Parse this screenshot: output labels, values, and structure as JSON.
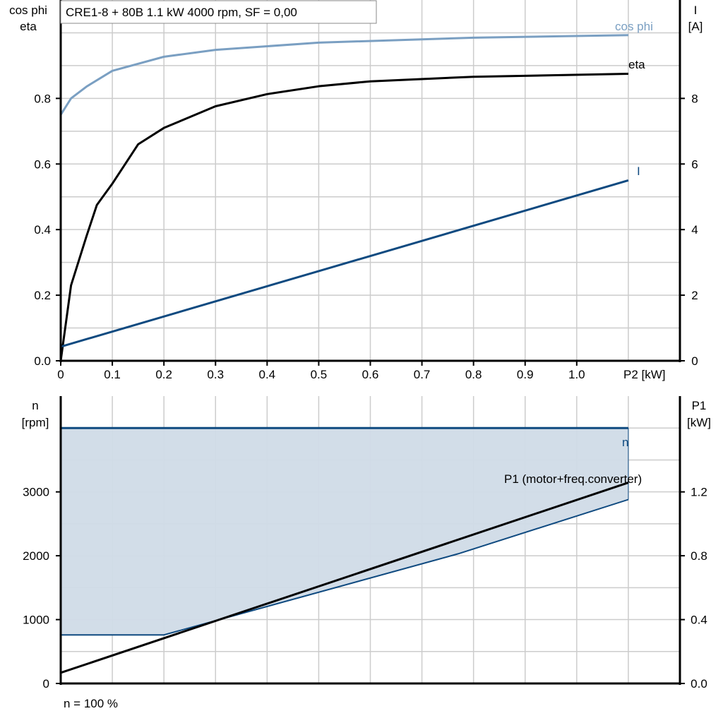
{
  "title": "CRE1-8 + 80B   1.1 kW   4000 rpm, SF = 0,00",
  "footer": "n = 100 %",
  "colors": {
    "cosphi": "#7a9fc2",
    "eta": "#000000",
    "I": "#0f4a80",
    "n": "#0f4a80",
    "n_fill": "#d0dbe7",
    "P1": "#000000",
    "grid": "#cccccc"
  },
  "chart_data": [
    {
      "type": "line",
      "xlabel": "P2 [kW]",
      "xlim": [
        0,
        1.2
      ],
      "xticks": [
        "0",
        "0.1",
        "0.2",
        "0.3",
        "0.4",
        "0.5",
        "0.6",
        "0.7",
        "0.8",
        "0.9",
        "1.0"
      ],
      "ylabel_left": [
        "cos phi",
        "eta"
      ],
      "ylim_left": [
        0,
        1.1
      ],
      "yticks_left": [
        "0.0",
        "0.2",
        "0.4",
        "0.6",
        "0.8"
      ],
      "ylabel_right": [
        "I",
        "[A]"
      ],
      "ylim_right": [
        0,
        11
      ],
      "yticks_right": [
        "0",
        "2",
        "4",
        "6",
        "8"
      ],
      "grid": true,
      "series": [
        {
          "name": "cos phi",
          "axis": "left",
          "x": [
            0,
            0.02,
            0.05,
            0.1,
            0.2,
            0.3,
            0.5,
            0.8,
            1.1
          ],
          "y": [
            0.75,
            0.8,
            0.836,
            0.884,
            0.927,
            0.948,
            0.97,
            0.985,
            0.993
          ]
        },
        {
          "name": "eta",
          "axis": "left",
          "x": [
            0,
            0.02,
            0.05,
            0.07,
            0.1,
            0.15,
            0.2,
            0.3,
            0.4,
            0.5,
            0.6,
            0.8,
            1.1
          ],
          "y": [
            0.0,
            0.23,
            0.38,
            0.475,
            0.54,
            0.66,
            0.71,
            0.776,
            0.813,
            0.837,
            0.852,
            0.866,
            0.875
          ]
        },
        {
          "name": "I",
          "axis": "right",
          "x": [
            0,
            1.1
          ],
          "y": [
            0.43,
            5.5
          ]
        }
      ]
    },
    {
      "type": "area",
      "xlim": [
        0,
        1.2
      ],
      "ylabel_left": [
        "n",
        "[rpm]"
      ],
      "ylim_left": [
        0,
        4500
      ],
      "yticks_left": [
        "0",
        "1000",
        "2000",
        "3000"
      ],
      "ylabel_right": [
        "P1",
        "[kW]"
      ],
      "ylim_right": [
        0,
        1.8
      ],
      "yticks_right": [
        "0.0",
        "0.4",
        "0.8",
        "1.2"
      ],
      "grid": true,
      "series": [
        {
          "name": "n",
          "axis": "left",
          "x": [
            0,
            1.1
          ],
          "y": [
            4000,
            4000
          ]
        },
        {
          "axis": "left",
          "x": [
            0,
            0.2,
            0.77,
            1.1
          ],
          "y": [
            760,
            760,
            2030,
            2880
          ]
        },
        {
          "name": "P1 (motor+freq.converter)",
          "axis": "right",
          "x": [
            0,
            1.1
          ],
          "y": [
            0.067,
            1.258
          ]
        }
      ]
    }
  ]
}
